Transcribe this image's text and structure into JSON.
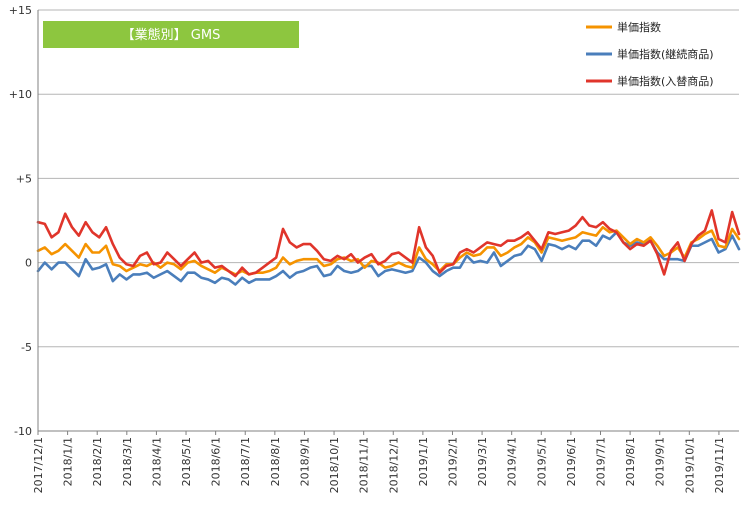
{
  "chart_data": {
    "type": "line",
    "title": "【業態別】 GMS",
    "colors": {
      "banner": "#8DC63F",
      "grid": "#b5b5b5",
      "axis": "#808080"
    },
    "ylim": [
      -10,
      15
    ],
    "yticks": [
      {
        "value": 15,
        "label": "+15"
      },
      {
        "value": 10,
        "label": "+10"
      },
      {
        "value": 5,
        "label": "+5"
      },
      {
        "value": 0,
        "label": "0"
      },
      {
        "value": -5,
        "label": "-5"
      },
      {
        "value": -10,
        "label": "-10"
      }
    ],
    "grid": true,
    "legend_position": "top-right",
    "x_start": "2017/12/1",
    "x_tick_labels": [
      "2017/12/1",
      "2018/1/1",
      "2018/2/1",
      "2018/3/1",
      "2018/4/1",
      "2018/5/1",
      "2018/6/1",
      "2018/7/1",
      "2018/8/1",
      "2018/9/1",
      "2018/10/1",
      "2018/11/1",
      "2018/12/1",
      "2019/1/1",
      "2019/2/1",
      "2019/3/1",
      "2019/4/1",
      "2019/5/1",
      "2019/6/1",
      "2019/7/1",
      "2019/8/1",
      "2019/9/1",
      "2019/10/1",
      "2019/11/1"
    ],
    "x_tick_every": 4.35,
    "series": [
      {
        "name": "単価指数",
        "color": "#F59300",
        "values": [
          0.7,
          0.9,
          0.5,
          0.7,
          1.1,
          0.7,
          0.3,
          1.1,
          0.6,
          0.6,
          1.0,
          -0.1,
          -0.2,
          -0.5,
          -0.3,
          -0.1,
          -0.2,
          0.0,
          -0.3,
          0.0,
          -0.1,
          -0.4,
          0.0,
          0.1,
          -0.2,
          -0.4,
          -0.6,
          -0.3,
          -0.5,
          -0.7,
          -0.5,
          -0.7,
          -0.6,
          -0.6,
          -0.5,
          -0.3,
          0.3,
          -0.1,
          0.1,
          0.2,
          0.2,
          0.2,
          -0.2,
          -0.1,
          0.2,
          0.3,
          0.1,
          0.2,
          -0.3,
          0.1,
          0.0,
          -0.3,
          -0.2,
          0.0,
          -0.2,
          -0.3,
          0.9,
          0.2,
          -0.1,
          -0.5,
          -0.1,
          -0.1,
          0.3,
          0.6,
          0.4,
          0.5,
          0.9,
          0.9,
          0.4,
          0.6,
          0.9,
          1.1,
          1.5,
          1.2,
          0.6,
          1.5,
          1.4,
          1.3,
          1.4,
          1.5,
          1.8,
          1.7,
          1.6,
          2.1,
          1.8,
          1.9,
          1.5,
          1.1,
          1.4,
          1.2,
          1.5,
          1.0,
          0.4,
          0.6,
          0.9,
          0.3,
          1.2,
          1.4,
          1.7,
          1.9,
          1.0,
          0.9,
          2.0,
          1.4
        ]
      },
      {
        "name": "単価指数(継続商品)",
        "color": "#4A7EBB",
        "values": [
          -0.5,
          0.0,
          -0.4,
          0.0,
          0.0,
          -0.4,
          -0.8,
          0.2,
          -0.4,
          -0.3,
          -0.1,
          -1.1,
          -0.7,
          -1.0,
          -0.7,
          -0.7,
          -0.6,
          -0.9,
          -0.7,
          -0.5,
          -0.8,
          -1.1,
          -0.6,
          -0.6,
          -0.9,
          -1.0,
          -1.2,
          -0.9,
          -1.0,
          -1.3,
          -0.9,
          -1.2,
          -1.0,
          -1.0,
          -1.0,
          -0.8,
          -0.5,
          -0.9,
          -0.6,
          -0.5,
          -0.3,
          -0.2,
          -0.8,
          -0.7,
          -0.2,
          -0.5,
          -0.6,
          -0.5,
          -0.2,
          -0.2,
          -0.8,
          -0.5,
          -0.4,
          -0.5,
          -0.6,
          -0.5,
          0.3,
          0.0,
          -0.5,
          -0.8,
          -0.5,
          -0.3,
          -0.3,
          0.4,
          0.0,
          0.1,
          0.0,
          0.6,
          -0.2,
          0.1,
          0.4,
          0.5,
          1.0,
          0.8,
          0.1,
          1.1,
          1.0,
          0.8,
          1.0,
          0.8,
          1.3,
          1.3,
          1.0,
          1.6,
          1.4,
          1.8,
          1.2,
          1.0,
          1.2,
          1.1,
          1.3,
          0.6,
          0.2,
          0.2,
          0.2,
          0.1,
          1.0,
          1.0,
          1.2,
          1.4,
          0.6,
          0.8,
          1.6,
          0.8
        ]
      },
      {
        "name": "単価指数(入替商品)",
        "color": "#E0352B",
        "values": [
          2.4,
          2.3,
          1.5,
          1.8,
          2.9,
          2.1,
          1.6,
          2.4,
          1.8,
          1.5,
          2.1,
          1.1,
          0.3,
          -0.1,
          -0.2,
          0.4,
          0.6,
          -0.1,
          0.0,
          0.6,
          0.2,
          -0.2,
          0.2,
          0.6,
          0.0,
          0.1,
          -0.3,
          -0.2,
          -0.5,
          -0.8,
          -0.3,
          -0.7,
          -0.6,
          -0.3,
          0.0,
          0.3,
          2.0,
          1.2,
          0.9,
          1.1,
          1.1,
          0.7,
          0.2,
          0.1,
          0.4,
          0.2,
          0.5,
          0.0,
          0.3,
          0.5,
          -0.1,
          0.1,
          0.5,
          0.6,
          0.3,
          0.0,
          2.1,
          0.9,
          0.4,
          -0.6,
          -0.2,
          -0.1,
          0.6,
          0.8,
          0.6,
          0.9,
          1.2,
          1.1,
          1.0,
          1.3,
          1.3,
          1.5,
          1.8,
          1.3,
          0.8,
          1.8,
          1.7,
          1.8,
          1.9,
          2.2,
          2.7,
          2.2,
          2.1,
          2.4,
          2.0,
          1.8,
          1.2,
          0.8,
          1.1,
          1.0,
          1.3,
          0.5,
          -0.7,
          0.7,
          1.2,
          0.1,
          1.1,
          1.6,
          1.9,
          3.1,
          1.4,
          1.2,
          3.0,
          1.7
        ]
      }
    ]
  }
}
